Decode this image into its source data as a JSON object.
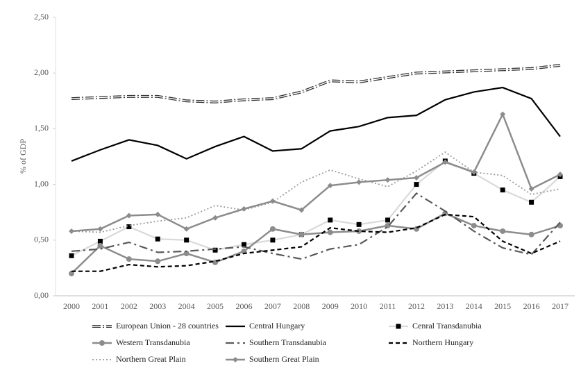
{
  "chart_data": {
    "type": "line",
    "y_label": "% of GDP",
    "categories": [
      "2000",
      "2001",
      "2002",
      "2003",
      "2004",
      "2005",
      "2006",
      "2007",
      "2008",
      "2009",
      "2010",
      "2011",
      "2012",
      "2013",
      "2014",
      "2015",
      "2016",
      "2017"
    ],
    "ylim": [
      0,
      2.5
    ],
    "yticks": [
      {
        "value": 0,
        "label": "0,00"
      },
      {
        "value": 0.5,
        "label": "0,50"
      },
      {
        "value": 1,
        "label": "1,00"
      },
      {
        "value": 1.5,
        "label": "1,50"
      },
      {
        "value": 2,
        "label": "2,00"
      },
      {
        "value": 2.5,
        "label": "2,50"
      }
    ],
    "series": [
      {
        "name": "European Union - 28 countries",
        "color": "#333333",
        "values": [
          1.77,
          1.78,
          1.79,
          1.79,
          1.75,
          1.74,
          1.76,
          1.77,
          1.83,
          1.93,
          1.92,
          1.96,
          2.0,
          2.01,
          2.02,
          2.03,
          2.04,
          2.07
        ]
      },
      {
        "name": "Central Hungary",
        "color": "#000000",
        "values": [
          1.21,
          1.31,
          1.4,
          1.35,
          1.23,
          1.34,
          1.43,
          1.3,
          1.32,
          1.48,
          1.52,
          1.6,
          1.62,
          1.76,
          1.83,
          1.87,
          1.77,
          1.43
        ]
      },
      {
        "name": "Cenral Transdanubia",
        "color": "#d9d9d9",
        "values": [
          0.36,
          0.49,
          0.62,
          0.51,
          0.5,
          0.41,
          0.46,
          0.5,
          0.55,
          0.68,
          0.64,
          0.68,
          1.0,
          1.21,
          1.1,
          0.95,
          0.84,
          1.07
        ]
      },
      {
        "name": "Western Transdanubia",
        "color": "#8c8c8c",
        "values": [
          0.2,
          0.45,
          0.33,
          0.31,
          0.38,
          0.3,
          0.4,
          0.6,
          0.55,
          0.57,
          0.58,
          0.63,
          0.6,
          0.74,
          0.63,
          0.58,
          0.55,
          0.63
        ]
      },
      {
        "name": "Southern Transdanubia",
        "color": "#595959",
        "values": [
          0.4,
          0.42,
          0.48,
          0.39,
          0.4,
          0.42,
          0.44,
          0.38,
          0.33,
          0.42,
          0.46,
          0.62,
          0.92,
          0.76,
          0.58,
          0.43,
          0.37,
          0.66
        ]
      },
      {
        "name": "Northern Hungary",
        "color": "#000000",
        "values": [
          0.22,
          0.22,
          0.28,
          0.26,
          0.27,
          0.31,
          0.38,
          0.41,
          0.44,
          0.61,
          0.58,
          0.57,
          0.61,
          0.73,
          0.71,
          0.49,
          0.38,
          0.49
        ]
      },
      {
        "name": "Northern Great Plain",
        "color": "#9a9a9a",
        "values": [
          0.58,
          0.57,
          0.63,
          0.67,
          0.7,
          0.81,
          0.77,
          0.84,
          1.02,
          1.13,
          1.05,
          0.98,
          1.12,
          1.29,
          1.11,
          1.08,
          0.91,
          0.96
        ]
      },
      {
        "name": "Southern Great Plain",
        "color": "#8c8c8c",
        "values": [
          0.58,
          0.6,
          0.72,
          0.73,
          0.6,
          0.7,
          0.78,
          0.85,
          0.77,
          0.99,
          1.02,
          1.04,
          1.06,
          1.2,
          1.11,
          1.63,
          0.96,
          1.09
        ]
      }
    ]
  }
}
